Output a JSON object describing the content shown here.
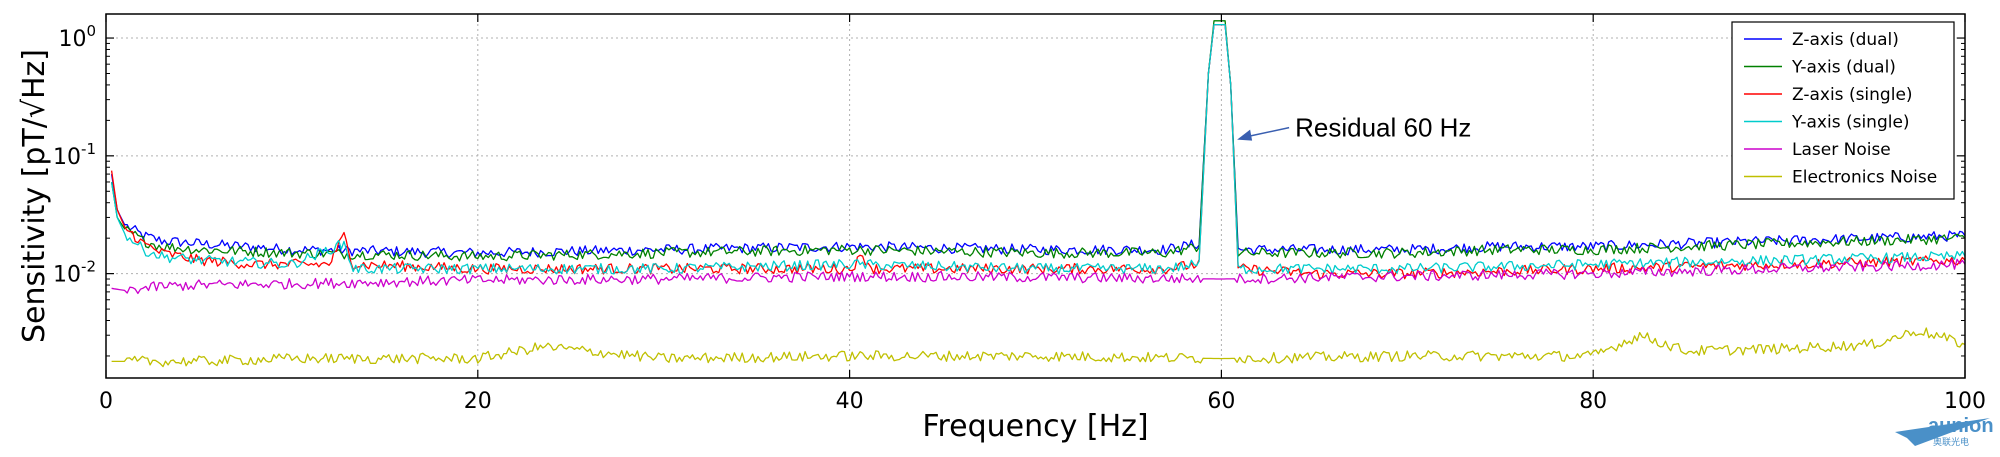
{
  "chart_data": {
    "type": "line",
    "title": "",
    "xlabel": "Frequency [Hz]",
    "ylabel": "Sensitivity [pT/√Hz]",
    "xlim": [
      0,
      100
    ],
    "ylim": [
      0.0013,
      1.6
    ],
    "yscale": "log",
    "grid": true,
    "legend_position": "top-right",
    "x_ticks": [
      "0",
      "20",
      "40",
      "60",
      "80",
      "100"
    ],
    "y_ticks": [
      {
        "value": 1,
        "base": "10",
        "exp": "0"
      },
      {
        "value": 0.1,
        "base": "10",
        "exp": "-1"
      },
      {
        "value": 0.01,
        "base": "10",
        "exp": "-2"
      }
    ],
    "annotation": {
      "text": "Residual 60 Hz",
      "x": 60.2,
      "y": 0.14
    },
    "series": [
      {
        "name": "Z-axis (dual)",
        "color": "#0000ff",
        "points": [
          [
            0.3,
            0.07
          ],
          [
            0.6,
            0.035
          ],
          [
            1,
            0.026
          ],
          [
            2,
            0.021
          ],
          [
            3,
            0.019
          ],
          [
            5,
            0.018
          ],
          [
            10,
            0.016
          ],
          [
            20,
            0.015
          ],
          [
            30,
            0.016
          ],
          [
            40,
            0.017
          ],
          [
            50,
            0.016
          ],
          [
            57,
            0.016
          ],
          [
            58.8,
            0.018
          ],
          [
            59.3,
            0.5
          ],
          [
            59.6,
            1.3
          ],
          [
            60.2,
            1.3
          ],
          [
            60.5,
            0.4
          ],
          [
            60.9,
            0.016
          ],
          [
            65,
            0.016
          ],
          [
            70,
            0.016
          ],
          [
            75,
            0.017
          ],
          [
            80,
            0.017
          ],
          [
            85,
            0.018
          ],
          [
            90,
            0.019
          ],
          [
            95,
            0.02
          ],
          [
            100,
            0.021
          ]
        ]
      },
      {
        "name": "Y-axis (dual)",
        "color": "#008000",
        "points": [
          [
            0.3,
            0.06
          ],
          [
            0.6,
            0.03
          ],
          [
            1,
            0.024
          ],
          [
            2,
            0.019
          ],
          [
            3,
            0.017
          ],
          [
            5,
            0.016
          ],
          [
            10,
            0.015
          ],
          [
            20,
            0.014
          ],
          [
            30,
            0.015
          ],
          [
            40,
            0.016
          ],
          [
            50,
            0.015
          ],
          [
            57,
            0.015
          ],
          [
            58.8,
            0.017
          ],
          [
            59.3,
            0.5
          ],
          [
            59.6,
            1.4
          ],
          [
            60.2,
            1.4
          ],
          [
            60.5,
            0.4
          ],
          [
            60.9,
            0.015
          ],
          [
            65,
            0.015
          ],
          [
            70,
            0.015
          ],
          [
            75,
            0.016
          ],
          [
            80,
            0.016
          ],
          [
            85,
            0.017
          ],
          [
            90,
            0.018
          ],
          [
            95,
            0.019
          ],
          [
            100,
            0.02
          ]
        ]
      },
      {
        "name": "Z-axis (single)",
        "color": "#ff0000",
        "points": [
          [
            0.3,
            0.075
          ],
          [
            0.6,
            0.035
          ],
          [
            1,
            0.025
          ],
          [
            2,
            0.018
          ],
          [
            3,
            0.015
          ],
          [
            5,
            0.013
          ],
          [
            8,
            0.012
          ],
          [
            12,
            0.012
          ],
          [
            12.8,
            0.021
          ],
          [
            13.3,
            0.012
          ],
          [
            20,
            0.011
          ],
          [
            30,
            0.011
          ],
          [
            40,
            0.011
          ],
          [
            40.7,
            0.014
          ],
          [
            41.3,
            0.011
          ],
          [
            50,
            0.011
          ],
          [
            57,
            0.011
          ],
          [
            58.8,
            0.012
          ],
          [
            59.3,
            0.5
          ],
          [
            59.6,
            1.3
          ],
          [
            60.2,
            1.3
          ],
          [
            60.5,
            0.4
          ],
          [
            60.9,
            0.011
          ],
          [
            65,
            0.01
          ],
          [
            70,
            0.01
          ],
          [
            80,
            0.011
          ],
          [
            90,
            0.012
          ],
          [
            100,
            0.013
          ]
        ]
      },
      {
        "name": "Y-axis (single)",
        "color": "#00cccc",
        "points": [
          [
            0.3,
            0.06
          ],
          [
            0.6,
            0.03
          ],
          [
            1,
            0.022
          ],
          [
            2,
            0.016
          ],
          [
            3,
            0.014
          ],
          [
            5,
            0.013
          ],
          [
            10,
            0.012
          ],
          [
            12.8,
            0.018
          ],
          [
            13.3,
            0.011
          ],
          [
            20,
            0.011
          ],
          [
            30,
            0.011
          ],
          [
            40,
            0.012
          ],
          [
            50,
            0.011
          ],
          [
            57,
            0.011
          ],
          [
            58.8,
            0.012
          ],
          [
            59.3,
            0.5
          ],
          [
            59.6,
            1.3
          ],
          [
            60.2,
            1.3
          ],
          [
            60.5,
            0.4
          ],
          [
            60.9,
            0.011
          ],
          [
            65,
            0.011
          ],
          [
            70,
            0.011
          ],
          [
            80,
            0.012
          ],
          [
            90,
            0.013
          ],
          [
            100,
            0.014
          ]
        ]
      },
      {
        "name": "Laser Noise",
        "color": "#cc00cc",
        "points": [
          [
            0.3,
            0.0075
          ],
          [
            1,
            0.0072
          ],
          [
            3,
            0.0078
          ],
          [
            5,
            0.008
          ],
          [
            10,
            0.0082
          ],
          [
            20,
            0.0088
          ],
          [
            30,
            0.009
          ],
          [
            40,
            0.0095
          ],
          [
            50,
            0.0093
          ],
          [
            60,
            0.009
          ],
          [
            70,
            0.0095
          ],
          [
            80,
            0.01
          ],
          [
            90,
            0.011
          ],
          [
            100,
            0.012
          ]
        ]
      },
      {
        "name": "Electronics Noise",
        "color": "#bfbf00",
        "points": [
          [
            0.3,
            0.0018
          ],
          [
            5,
            0.0018
          ],
          [
            10,
            0.0019
          ],
          [
            20,
            0.0019
          ],
          [
            23.5,
            0.0024
          ],
          [
            30,
            0.0019
          ],
          [
            40,
            0.002
          ],
          [
            50,
            0.002
          ],
          [
            60,
            0.0019
          ],
          [
            70,
            0.002
          ],
          [
            80,
            0.002
          ],
          [
            82.5,
            0.003
          ],
          [
            85,
            0.0022
          ],
          [
            90,
            0.0023
          ],
          [
            95,
            0.0025
          ],
          [
            97.5,
            0.0033
          ],
          [
            100,
            0.0025
          ]
        ]
      }
    ]
  },
  "watermark": {
    "name": "aunion",
    "sub": "奥联光电"
  }
}
